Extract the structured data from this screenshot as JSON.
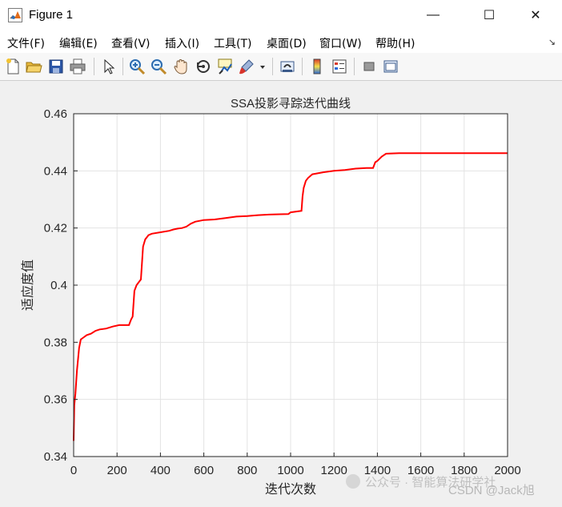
{
  "window": {
    "title": "Figure 1",
    "minimize_glyph": "—",
    "maximize_glyph": "☐",
    "close_glyph": "✕"
  },
  "menu": {
    "items": [
      {
        "label": "文件(F)"
      },
      {
        "label": "编辑(E)"
      },
      {
        "label": "查看(V)"
      },
      {
        "label": "插入(I)"
      },
      {
        "label": "工具(T)"
      },
      {
        "label": "桌面(D)"
      },
      {
        "label": "窗口(W)"
      },
      {
        "label": "帮助(H)"
      }
    ],
    "dock_glyph": "↘"
  },
  "toolbar": {
    "icons": [
      "new-figure-icon",
      "open-folder-icon",
      "save-icon",
      "print-icon",
      "pointer-icon",
      "zoom-in-icon",
      "zoom-out-icon",
      "pan-hand-icon",
      "rotate-3d-icon",
      "data-cursor-icon",
      "brush-icon",
      "brush-dropdown-icon",
      "link-plot-icon",
      "colorbar-icon",
      "legend-icon",
      "hide-plot-tools-icon",
      "show-plot-tools-icon"
    ]
  },
  "colors": {
    "line": "#ff0000",
    "grid": "#e3e3e3",
    "axes_bg": "#ffffff",
    "axes_border": "#262626",
    "figure_bg": "#f0f0f0"
  },
  "watermark": {
    "text1": "公众号 · 智能算法研学社",
    "text2": "CSDN @Jack旭"
  },
  "chart_data": {
    "type": "line",
    "title": "SSA投影寻踪迭代曲线",
    "xlabel": "迭代次数",
    "ylabel": "适应度值",
    "xlim": [
      0,
      2000
    ],
    "ylim": [
      0.34,
      0.46
    ],
    "xticks": [
      "0",
      "200",
      "400",
      "600",
      "800",
      "1000",
      "1200",
      "1400",
      "1600",
      "1800",
      "2000"
    ],
    "yticks": [
      "0.34",
      "0.36",
      "0.38",
      "0.4",
      "0.42",
      "0.44",
      "0.46"
    ],
    "grid": true,
    "series": [
      {
        "x": [
          0,
          3,
          8,
          15,
          25,
          33,
          42,
          60,
          80,
          100,
          120,
          150,
          180,
          210,
          230,
          255,
          265,
          272,
          280,
          290,
          300,
          310,
          320,
          330,
          345,
          360,
          400,
          440,
          460,
          480,
          500,
          520,
          540,
          560,
          600,
          650,
          700,
          750,
          800,
          850,
          900,
          950,
          990,
          1000,
          1050,
          1055,
          1060,
          1070,
          1080,
          1100,
          1150,
          1200,
          1250,
          1300,
          1350,
          1380,
          1390,
          1400,
          1420,
          1440,
          1500,
          1600,
          1800,
          2000
        ],
        "y": [
          0.3455,
          0.358,
          0.362,
          0.37,
          0.378,
          0.381,
          0.3815,
          0.3825,
          0.383,
          0.384,
          0.3845,
          0.3848,
          0.3855,
          0.386,
          0.386,
          0.386,
          0.388,
          0.389,
          0.398,
          0.4,
          0.401,
          0.402,
          0.4135,
          0.416,
          0.4175,
          0.418,
          0.4185,
          0.419,
          0.4195,
          0.4198,
          0.42,
          0.4205,
          0.4215,
          0.4222,
          0.4228,
          0.423,
          0.4235,
          0.424,
          0.4242,
          0.4245,
          0.4247,
          0.4248,
          0.4249,
          0.4255,
          0.426,
          0.431,
          0.434,
          0.4365,
          0.4375,
          0.4388,
          0.4395,
          0.44,
          0.4403,
          0.4408,
          0.441,
          0.441,
          0.443,
          0.4435,
          0.445,
          0.446,
          0.4462,
          0.4462,
          0.4462,
          0.4462
        ]
      }
    ]
  }
}
